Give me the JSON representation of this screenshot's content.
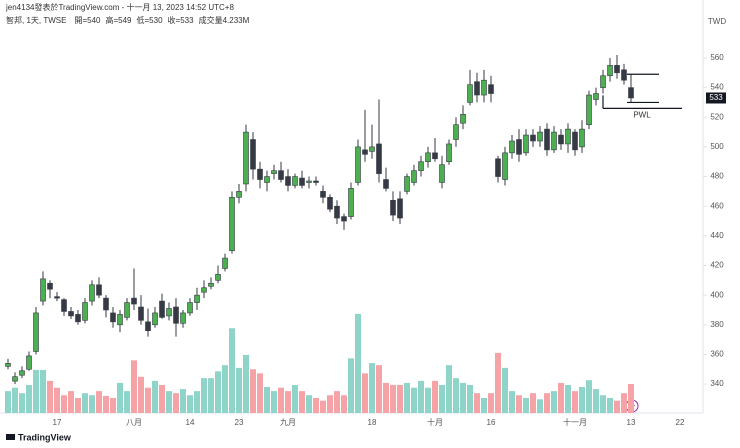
{
  "header": {
    "author_line": "jen4134發表於TradingView.com - 十一月 13, 2023 14:52 UTC+8",
    "symbol": "智邦, 1天, TWSE",
    "ohlc_text": [
      "開=540",
      "高=549",
      "低=530",
      "收=533",
      "成交量4.233M"
    ],
    "currency": "TWD",
    "logo": "TradingView"
  },
  "chart_data": {
    "type": "candlestick",
    "categories": [
      null,
      null,
      null,
      null,
      null,
      null,
      null,
      "17",
      null,
      null,
      null,
      null,
      null,
      null,
      null,
      null,
      null,
      null,
      "八月",
      null,
      null,
      null,
      null,
      null,
      null,
      null,
      "14",
      null,
      null,
      null,
      null,
      null,
      null,
      "23",
      null,
      null,
      null,
      null,
      null,
      null,
      "九月",
      null,
      null,
      null,
      null,
      null,
      null,
      null,
      null,
      null,
      null,
      null,
      "18",
      null,
      null,
      null,
      null,
      null,
      null,
      null,
      null,
      "十月",
      null,
      null,
      null,
      null,
      null,
      null,
      null,
      "16",
      null,
      null,
      null,
      null,
      null,
      null,
      null,
      null,
      null,
      null,
      null,
      "十一月",
      null,
      null,
      null,
      null,
      null,
      null,
      null,
      "13",
      null,
      null,
      null,
      null,
      null,
      null,
      "22"
    ],
    "open": [
      352,
      342,
      346,
      350,
      362,
      396,
      408,
      399,
      397,
      389,
      387,
      383,
      396,
      407,
      398,
      388,
      380,
      385,
      398,
      392,
      382,
      380,
      396,
      386,
      392,
      381,
      388,
      395,
      402,
      406,
      410,
      418,
      430,
      466,
      475,
      505,
      485,
      476,
      482,
      484,
      480,
      474,
      479,
      476,
      477,
      470,
      466,
      460,
      453,
      453,
      476,
      498,
      497,
      502,
      478,
      464,
      465,
      470,
      476,
      484,
      490,
      496,
      476,
      490,
      505,
      516,
      530,
      544,
      535,
      542,
      492,
      478,
      496,
      505,
      496,
      508,
      504,
      512,
      498,
      508,
      502,
      510,
      500,
      515,
      532,
      540,
      548,
      555,
      552,
      540,
      null,
      null,
      null,
      null,
      null,
      null,
      null
    ],
    "high": [
      357,
      348,
      352,
      362,
      392,
      416,
      410,
      402,
      398,
      392,
      390,
      398,
      410,
      412,
      400,
      392,
      390,
      398,
      418,
      400,
      391,
      392,
      401,
      395,
      398,
      390,
      398,
      405,
      410,
      412,
      420,
      428,
      470,
      475,
      515,
      510,
      490,
      484,
      488,
      490,
      485,
      482,
      484,
      480,
      480,
      474,
      468,
      464,
      455,
      476,
      505,
      525,
      515,
      532,
      486,
      470,
      470,
      482,
      488,
      494,
      500,
      506,
      494,
      505,
      520,
      528,
      552,
      550,
      552,
      548,
      494,
      500,
      508,
      512,
      512,
      512,
      514,
      516,
      514,
      512,
      516,
      512,
      518,
      538,
      540,
      552,
      560,
      562,
      556,
      549,
      null,
      null,
      null,
      null,
      null,
      null,
      null
    ],
    "low": [
      350,
      340,
      344,
      349,
      360,
      393,
      398,
      396,
      386,
      384,
      380,
      381,
      393,
      398,
      385,
      378,
      375,
      383,
      390,
      380,
      372,
      378,
      384,
      383,
      372,
      378,
      386,
      390,
      398,
      404,
      408,
      416,
      428,
      462,
      470,
      478,
      472,
      470,
      478,
      476,
      470,
      472,
      472,
      472,
      474,
      462,
      456,
      448,
      444,
      451,
      474,
      490,
      492,
      476,
      470,
      450,
      448,
      468,
      474,
      480,
      486,
      490,
      472,
      488,
      500,
      512,
      528,
      530,
      530,
      530,
      476,
      474,
      492,
      490,
      494,
      500,
      500,
      494,
      496,
      498,
      496,
      494,
      496,
      512,
      528,
      536,
      544,
      546,
      542,
      530,
      null,
      null,
      null,
      null,
      null,
      null,
      null
    ],
    "close": [
      354,
      345,
      349,
      359,
      388,
      411,
      404,
      398,
      389,
      386,
      382,
      395,
      407,
      400,
      390,
      382,
      387,
      395,
      394,
      383,
      376,
      388,
      385,
      391,
      381,
      388,
      395,
      400,
      405,
      408,
      414,
      425,
      466,
      470,
      510,
      485,
      478,
      480,
      484,
      478,
      474,
      480,
      474,
      477,
      476,
      466,
      458,
      452,
      450,
      472,
      500,
      495,
      500,
      482,
      472,
      454,
      452,
      480,
      484,
      490,
      496,
      492,
      488,
      502,
      515,
      522,
      542,
      535,
      545,
      536,
      480,
      496,
      504,
      495,
      508,
      504,
      510,
      498,
      510,
      502,
      512,
      498,
      512,
      535,
      536,
      548,
      555,
      550,
      545,
      533,
      null,
      null,
      null,
      null,
      null,
      null,
      null
    ],
    "volume": [
      3.2,
      3.7,
      2.9,
      4.1,
      6.3,
      6.3,
      4.7,
      3.7,
      2.6,
      3.2,
      2.2,
      2.9,
      2.6,
      3.2,
      2.5,
      2.2,
      4.4,
      3.2,
      7.7,
      5.3,
      3.7,
      4.7,
      4.1,
      3.2,
      2.9,
      3.5,
      2.6,
      3.2,
      5.1,
      5.1,
      6.1,
      7.0,
      12.4,
      6.6,
      8.5,
      6.4,
      5.8,
      3.8,
      3.2,
      3.7,
      3.2,
      4.1,
      3.2,
      2.6,
      2.2,
      1.8,
      2.6,
      3.2,
      2.6,
      8.0,
      14.5,
      5.8,
      7.3,
      7.0,
      4.4,
      4.1,
      4.1,
      4.4,
      3.7,
      4.7,
      3.7,
      4.7,
      4.1,
      7.0,
      5.1,
      4.4,
      4.1,
      2.9,
      2.2,
      2.9,
      8.8,
      6.6,
      3.2,
      2.6,
      2.2,
      2.9,
      2.0,
      2.9,
      3.2,
      4.4,
      4.1,
      3.2,
      3.8,
      4.8,
      3.5,
      2.6,
      2.2,
      1.8,
      2.9,
      4.233,
      null,
      null,
      null,
      null,
      null,
      null,
      null
    ],
    "up_color": "#4caf50",
    "down_color": "#363a45",
    "volume_up_color": "#8fd4c8",
    "volume_down_color": "#f5a3a6",
    "ylim": [
      320.5,
      599.1
    ],
    "yticks": [
      340,
      360,
      380,
      400,
      420,
      440,
      460,
      480,
      500,
      520,
      540,
      560
    ],
    "grid": false,
    "levels": [
      {
        "label": "PWL",
        "value": 526
      }
    ]
  }
}
